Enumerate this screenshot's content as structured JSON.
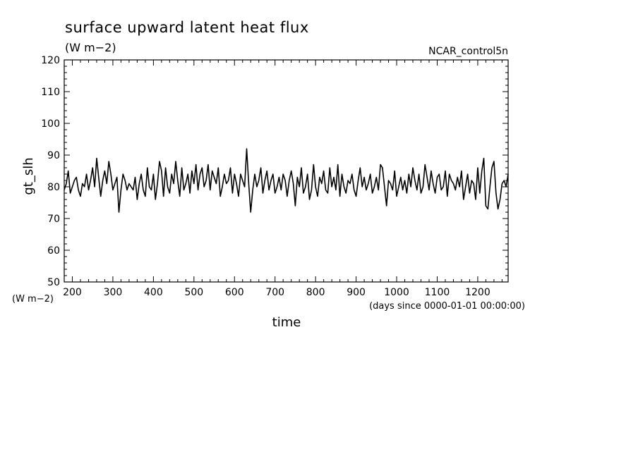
{
  "chart_data": {
    "type": "line",
    "title": "surface upward latent heat flux",
    "subtitle": "(W m−2)",
    "run_label": "NCAR_control5n",
    "xlabel": "time",
    "x_units": "(days since 0000-01-01 00:00:00)",
    "ylabel": "gt_slh",
    "y_units": "(W m−2)",
    "xlim": [
      180,
      1275
    ],
    "ylim": [
      50,
      120
    ],
    "x_ticks": [
      200,
      300,
      400,
      500,
      600,
      700,
      800,
      900,
      1000,
      1100,
      1200
    ],
    "y_ticks": [
      50,
      60,
      70,
      80,
      90,
      100,
      110,
      120
    ],
    "grid": false,
    "line_color": "#000000",
    "series": [
      {
        "x": [
          180,
          185,
          190,
          195,
          200,
          205,
          210,
          215,
          220,
          225,
          230,
          235,
          240,
          245,
          250,
          255,
          260,
          265,
          270,
          275,
          280,
          285,
          290,
          295,
          300,
          305,
          310,
          315,
          320,
          325,
          330,
          335,
          340,
          345,
          350,
          355,
          360,
          365,
          370,
          375,
          380,
          385,
          390,
          395,
          400,
          405,
          410,
          415,
          420,
          425,
          430,
          435,
          440,
          445,
          450,
          455,
          460,
          465,
          470,
          475,
          480,
          485,
          490,
          495,
          500,
          505,
          510,
          515,
          520,
          525,
          530,
          535,
          540,
          545,
          550,
          555,
          560,
          565,
          570,
          575,
          580,
          585,
          590,
          595,
          600,
          605,
          610,
          615,
          620,
          625,
          630,
          635,
          640,
          645,
          650,
          655,
          660,
          665,
          670,
          675,
          680,
          685,
          690,
          695,
          700,
          705,
          710,
          715,
          720,
          725,
          730,
          735,
          740,
          745,
          750,
          755,
          760,
          765,
          770,
          775,
          780,
          785,
          790,
          795,
          800,
          805,
          810,
          815,
          820,
          825,
          830,
          835,
          840,
          845,
          850,
          855,
          860,
          865,
          870,
          875,
          880,
          885,
          890,
          895,
          900,
          905,
          910,
          915,
          920,
          925,
          930,
          935,
          940,
          945,
          950,
          955,
          960,
          965,
          970,
          975,
          980,
          985,
          990,
          995,
          1000,
          1005,
          1010,
          1015,
          1020,
          1025,
          1030,
          1035,
          1040,
          1045,
          1050,
          1055,
          1060,
          1065,
          1070,
          1075,
          1080,
          1085,
          1090,
          1095,
          1100,
          1105,
          1110,
          1115,
          1120,
          1125,
          1130,
          1135,
          1140,
          1145,
          1150,
          1155,
          1160,
          1165,
          1170,
          1175,
          1180,
          1185,
          1190,
          1195,
          1200,
          1205,
          1210,
          1215,
          1220,
          1225,
          1230,
          1235,
          1240,
          1245,
          1250,
          1255,
          1260,
          1265,
          1270,
          1275
        ],
        "y": [
          79,
          81,
          85,
          78,
          80,
          82,
          83,
          79,
          77,
          81,
          80,
          84,
          79,
          82,
          86,
          80,
          89,
          83,
          77,
          82,
          85,
          81,
          88,
          84,
          79,
          81,
          83,
          72,
          79,
          84,
          82,
          79,
          81,
          80,
          79,
          83,
          76,
          81,
          84,
          79,
          77,
          86,
          80,
          79,
          84,
          76,
          81,
          88,
          85,
          77,
          86,
          80,
          78,
          84,
          81,
          88,
          82,
          77,
          86,
          79,
          81,
          84,
          78,
          85,
          81,
          87,
          79,
          84,
          86,
          80,
          82,
          87,
          79,
          85,
          83,
          81,
          86,
          77,
          80,
          84,
          81,
          82,
          86,
          78,
          84,
          81,
          77,
          84,
          82,
          80,
          92,
          81,
          72,
          79,
          84,
          80,
          82,
          86,
          78,
          82,
          85,
          79,
          82,
          84,
          78,
          80,
          83,
          79,
          84,
          82,
          77,
          82,
          85,
          81,
          74,
          83,
          80,
          86,
          78,
          80,
          84,
          76,
          79,
          87,
          80,
          77,
          83,
          81,
          85,
          79,
          78,
          86,
          80,
          83,
          79,
          87,
          77,
          84,
          80,
          78,
          82,
          81,
          84,
          79,
          77,
          82,
          86,
          80,
          83,
          79,
          81,
          84,
          78,
          80,
          83,
          79,
          87,
          86,
          80,
          74,
          82,
          81,
          79,
          85,
          77,
          80,
          83,
          79,
          82,
          78,
          84,
          80,
          86,
          82,
          79,
          84,
          78,
          80,
          87,
          83,
          79,
          85,
          81,
          78,
          83,
          84,
          79,
          80,
          85,
          77,
          84,
          82,
          81,
          79,
          83,
          80,
          85,
          76,
          80,
          84,
          78,
          82,
          81,
          76,
          86,
          78,
          85,
          89,
          74,
          73,
          80,
          86,
          88,
          78,
          73,
          76,
          81,
          82,
          80,
          84
        ]
      }
    ]
  }
}
